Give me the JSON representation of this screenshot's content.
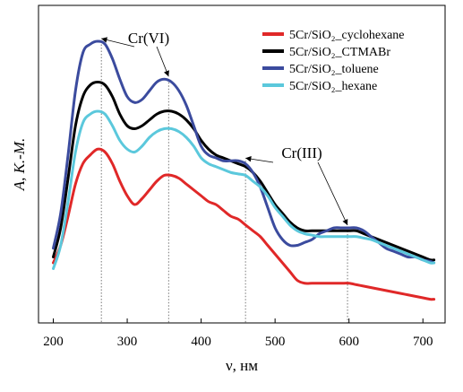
{
  "chart_data": {
    "type": "line",
    "xlabel": "ν, нм",
    "ylabel": "A, К.-М.",
    "xlim": [
      180,
      730
    ],
    "ylim": [
      0,
      1
    ],
    "xticks": [
      200,
      300,
      400,
      500,
      600,
      700
    ],
    "xtick_labels": [
      "200",
      "300",
      "400",
      "500",
      "600",
      "700"
    ],
    "y_ticks_shown": false,
    "grid": false,
    "legend_position": "top-right",
    "series": [
      {
        "name": "5Cr/SiO₂_cyclohexane",
        "color": "#e02828",
        "x": [
          200,
          210,
          220,
          230,
          240,
          250,
          260,
          270,
          280,
          290,
          300,
          310,
          320,
          330,
          340,
          350,
          360,
          370,
          380,
          390,
          400,
          410,
          420,
          430,
          440,
          450,
          460,
          470,
          480,
          490,
          500,
          510,
          520,
          530,
          540,
          550,
          560,
          570,
          580,
          590,
          600,
          610,
          620,
          630,
          640,
          650,
          660,
          670,
          680,
          690,
          700,
          710,
          715
        ],
        "y": [
          0.16,
          0.22,
          0.32,
          0.43,
          0.5,
          0.53,
          0.55,
          0.54,
          0.5,
          0.44,
          0.39,
          0.36,
          0.38,
          0.41,
          0.44,
          0.46,
          0.46,
          0.45,
          0.43,
          0.41,
          0.39,
          0.37,
          0.36,
          0.34,
          0.32,
          0.31,
          0.29,
          0.27,
          0.25,
          0.22,
          0.19,
          0.16,
          0.13,
          0.1,
          0.09,
          0.09,
          0.09,
          0.09,
          0.09,
          0.09,
          0.09,
          0.085,
          0.08,
          0.075,
          0.07,
          0.065,
          0.06,
          0.055,
          0.05,
          0.045,
          0.04,
          0.035,
          0.035
        ]
      },
      {
        "name": "5Cr/SiO₂_CTMABr",
        "color": "#000000",
        "x": [
          200,
          210,
          220,
          230,
          240,
          250,
          260,
          270,
          280,
          290,
          300,
          310,
          320,
          330,
          340,
          350,
          360,
          370,
          380,
          390,
          400,
          410,
          420,
          430,
          440,
          450,
          460,
          470,
          480,
          490,
          500,
          510,
          520,
          530,
          540,
          550,
          560,
          570,
          580,
          590,
          600,
          610,
          620,
          630,
          640,
          650,
          660,
          670,
          680,
          690,
          700,
          710,
          715
        ],
        "y": [
          0.18,
          0.28,
          0.45,
          0.63,
          0.73,
          0.77,
          0.78,
          0.77,
          0.73,
          0.67,
          0.63,
          0.62,
          0.63,
          0.65,
          0.67,
          0.68,
          0.68,
          0.67,
          0.65,
          0.62,
          0.58,
          0.55,
          0.53,
          0.52,
          0.51,
          0.5,
          0.49,
          0.47,
          0.44,
          0.4,
          0.36,
          0.33,
          0.3,
          0.28,
          0.27,
          0.27,
          0.27,
          0.27,
          0.27,
          0.27,
          0.27,
          0.27,
          0.26,
          0.25,
          0.24,
          0.23,
          0.22,
          0.21,
          0.2,
          0.19,
          0.18,
          0.17,
          0.17
        ]
      },
      {
        "name": "5Cr/SiO₂_toluene",
        "color": "#3b4b9e",
        "x": [
          200,
          210,
          220,
          230,
          240,
          250,
          260,
          270,
          280,
          290,
          300,
          310,
          320,
          330,
          340,
          350,
          360,
          370,
          380,
          390,
          400,
          410,
          420,
          430,
          440,
          450,
          460,
          470,
          480,
          490,
          500,
          510,
          520,
          530,
          540,
          550,
          560,
          570,
          580,
          590,
          600,
          610,
          620,
          630,
          640,
          650,
          660,
          670,
          680,
          690,
          700,
          710,
          715
        ],
        "y": [
          0.21,
          0.33,
          0.53,
          0.75,
          0.88,
          0.91,
          0.92,
          0.91,
          0.86,
          0.79,
          0.73,
          0.71,
          0.72,
          0.75,
          0.78,
          0.79,
          0.78,
          0.75,
          0.7,
          0.63,
          0.56,
          0.53,
          0.52,
          0.51,
          0.51,
          0.51,
          0.5,
          0.47,
          0.42,
          0.35,
          0.28,
          0.24,
          0.22,
          0.22,
          0.23,
          0.24,
          0.26,
          0.27,
          0.28,
          0.28,
          0.28,
          0.28,
          0.27,
          0.25,
          0.23,
          0.21,
          0.2,
          0.19,
          0.18,
          0.18,
          0.17,
          0.165,
          0.16
        ]
      },
      {
        "name": "5Cr/SiO₂_hexane",
        "color": "#5bc8dc",
        "x": [
          200,
          210,
          220,
          230,
          240,
          250,
          260,
          270,
          280,
          290,
          300,
          310,
          320,
          330,
          340,
          350,
          360,
          370,
          380,
          390,
          400,
          410,
          420,
          430,
          440,
          450,
          460,
          470,
          480,
          490,
          500,
          510,
          520,
          530,
          540,
          550,
          560,
          570,
          580,
          590,
          600,
          610,
          620,
          630,
          640,
          650,
          660,
          670,
          680,
          690,
          700,
          710,
          715
        ],
        "y": [
          0.14,
          0.22,
          0.37,
          0.54,
          0.64,
          0.67,
          0.68,
          0.67,
          0.63,
          0.58,
          0.55,
          0.54,
          0.56,
          0.59,
          0.61,
          0.62,
          0.62,
          0.61,
          0.59,
          0.56,
          0.52,
          0.5,
          0.49,
          0.48,
          0.47,
          0.465,
          0.46,
          0.44,
          0.42,
          0.39,
          0.35,
          0.32,
          0.29,
          0.27,
          0.26,
          0.255,
          0.25,
          0.25,
          0.25,
          0.25,
          0.25,
          0.25,
          0.245,
          0.24,
          0.23,
          0.22,
          0.21,
          0.2,
          0.19,
          0.18,
          0.17,
          0.16,
          0.16
        ]
      }
    ],
    "markers": [
      {
        "x": 265,
        "label": "Cr(VI)",
        "y_top": 0.92
      },
      {
        "x": 356,
        "label": "Cr(VI)",
        "y_top": 0.79
      },
      {
        "x": 460,
        "label": "Cr(III)",
        "y_top": 0.51
      },
      {
        "x": 598,
        "label": "Cr(III)",
        "y_top": 0.28
      }
    ],
    "annotations": [
      {
        "text": "Cr(VI)",
        "targets": [
          0,
          1
        ]
      },
      {
        "text": "Cr(III)",
        "targets": [
          2,
          3
        ]
      }
    ]
  }
}
